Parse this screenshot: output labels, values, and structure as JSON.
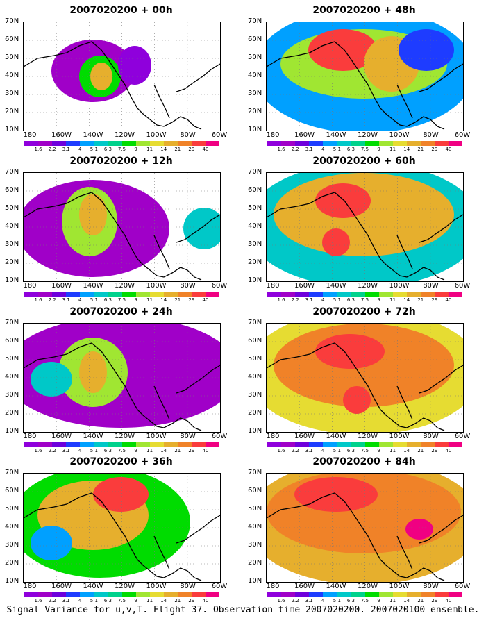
{
  "panels": [
    {
      "title": "2007020200 + 00h"
    },
    {
      "title": "2007020200 + 48h"
    },
    {
      "title": "2007020200 + 12h"
    },
    {
      "title": "2007020200 + 60h"
    },
    {
      "title": "2007020200 + 24h"
    },
    {
      "title": "2007020200 + 72h"
    },
    {
      "title": "2007020200 + 36h"
    },
    {
      "title": "2007020200 + 84h"
    }
  ],
  "lat_labels": [
    "70N",
    "60N",
    "50N",
    "40N",
    "30N",
    "20N",
    "10N"
  ],
  "lon_labels": [
    "180",
    "160W",
    "140W",
    "120W",
    "100W",
    "80W",
    "60W"
  ],
  "colorbar": {
    "labels": [
      "1.6",
      "2.2",
      "3.1",
      "4",
      "5.1",
      "6.3",
      "7.5",
      "9",
      "11",
      "14",
      "21",
      "29",
      "40"
    ],
    "colors": [
      "#8f00dc",
      "#a000c8",
      "#6e00dc",
      "#1e3cff",
      "#00a0ff",
      "#00c8c8",
      "#00d28c",
      "#00dc00",
      "#a0e632",
      "#e6dc32",
      "#e6af2d",
      "#f08228",
      "#fa3c3c",
      "#f00082"
    ]
  },
  "caption": "Signal Variance for u,v,T. Flight 37. Observation time 2007020200. 2007020100 ensemble."
}
